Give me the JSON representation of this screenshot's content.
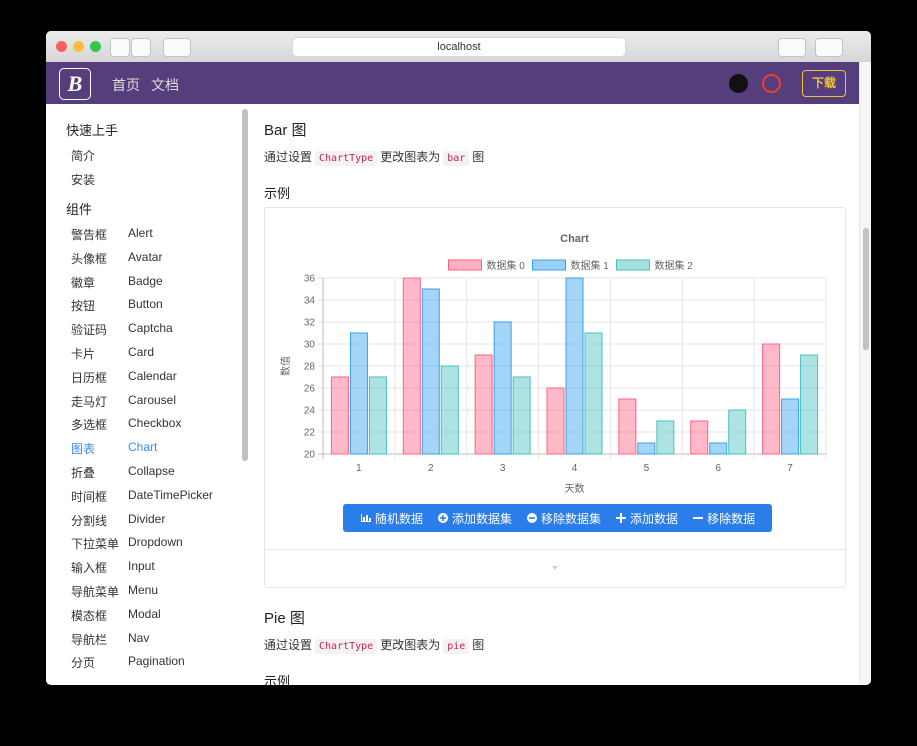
{
  "browser": {
    "url": "localhost"
  },
  "navbar": {
    "logo": "B",
    "links": [
      "首页",
      "文档"
    ],
    "download": "下载"
  },
  "sidebar": {
    "sections": [
      {
        "title": "快速上手",
        "items": [
          {
            "zh": "简介"
          },
          {
            "zh": "安装"
          }
        ]
      },
      {
        "title": "组件",
        "items": [
          {
            "zh": "警告框",
            "en": "Alert"
          },
          {
            "zh": "头像框",
            "en": "Avatar"
          },
          {
            "zh": "徽章",
            "en": "Badge"
          },
          {
            "zh": "按钮",
            "en": "Button"
          },
          {
            "zh": "验证码",
            "en": "Captcha"
          },
          {
            "zh": "卡片",
            "en": "Card"
          },
          {
            "zh": "日历框",
            "en": "Calendar"
          },
          {
            "zh": "走马灯",
            "en": "Carousel"
          },
          {
            "zh": "多选框",
            "en": "Checkbox"
          },
          {
            "zh": "图表",
            "en": "Chart",
            "color": "#3a8ee6"
          },
          {
            "zh": "折叠",
            "en": "Collapse"
          },
          {
            "zh": "时间框",
            "en": "DateTimePicker"
          },
          {
            "zh": "分割线",
            "en": "Divider"
          },
          {
            "zh": "下拉菜单",
            "en": "Dropdown"
          },
          {
            "zh": "输入框",
            "en": "Input"
          },
          {
            "zh": "导航菜单",
            "en": "Menu"
          },
          {
            "zh": "模态框",
            "en": "Modal"
          },
          {
            "zh": "导航栏",
            "en": "Nav"
          },
          {
            "zh": "分页",
            "en": "Pagination"
          }
        ]
      }
    ]
  },
  "content": {
    "bar_title": "Bar 图",
    "bar_desc": [
      "通过设置",
      "ChartType",
      "更改图表为",
      "bar",
      "图"
    ],
    "bar_example": "示例",
    "buttons": [
      "随机数据",
      "添加数据集",
      "移除数据集",
      "添加数据",
      "移除数据"
    ],
    "pie_title": "Pie 图",
    "pie_desc": [
      "通过设置",
      "ChartType",
      "更改图表为",
      "pie",
      "图"
    ],
    "pie_example": "示例"
  },
  "chart_data": {
    "type": "bar",
    "title": "Chart",
    "x_label": "天数",
    "y_label": "数值",
    "categories": [
      "1",
      "2",
      "3",
      "4",
      "5",
      "6",
      "7"
    ],
    "series": [
      {
        "name": "数据集 0",
        "color": "#ff6384",
        "values": [
          27,
          36,
          29,
          26,
          25,
          23,
          30
        ]
      },
      {
        "name": "数据集 1",
        "color": "#36a2eb",
        "values": [
          31,
          35,
          32,
          36,
          21,
          21,
          25
        ]
      },
      {
        "name": "数据集 2",
        "color": "#4bc0c0",
        "values": [
          27,
          28,
          27,
          31,
          23,
          24,
          29
        ]
      }
    ],
    "ylim": [
      20,
      36
    ],
    "yticks": [
      20,
      22,
      24,
      26,
      28,
      30,
      32,
      34,
      36
    ],
    "grid": true,
    "legend": "top"
  }
}
